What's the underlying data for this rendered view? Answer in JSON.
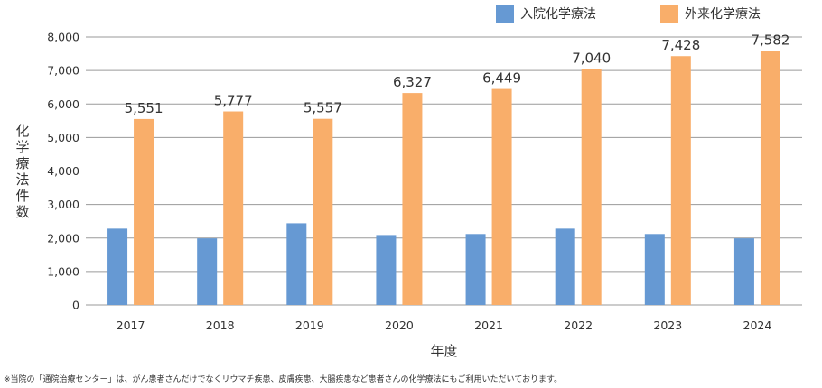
{
  "chart_data": {
    "type": "bar",
    "categories": [
      "2017",
      "2018",
      "2019",
      "2020",
      "2021",
      "2022",
      "2023",
      "2024"
    ],
    "series": [
      {
        "name": "入院化学療法",
        "values": [
          2280,
          1990,
          2440,
          2090,
          2120,
          2280,
          2120,
          1990
        ],
        "color": "#6699d3",
        "show_labels": false
      },
      {
        "name": "外来化学療法",
        "values": [
          5551,
          5777,
          5557,
          6327,
          6449,
          7040,
          7428,
          7582
        ],
        "color": "#f9ae6a",
        "show_labels": true
      }
    ],
    "data_labels": [
      "5,551",
      "5,777",
      "5,557",
      "6,327",
      "6,449",
      "7,040",
      "7,428",
      "7,582"
    ],
    "y_ticks": [
      "0",
      "1,000",
      "2,000",
      "3,000",
      "4,000",
      "5,000",
      "6,000",
      "7,000",
      "8,000"
    ],
    "ylim": [
      0,
      8000
    ],
    "xlabel": "年度",
    "ylabel": "化学療法件数",
    "grid": true,
    "legend": "top-right"
  },
  "footnote": "※当院の「通院治療センター」は、がん患者さんだけでなくリウマチ疾患、皮膚疾患、大腸疾患など患者さんの化学療法にもご利用いただいております。"
}
